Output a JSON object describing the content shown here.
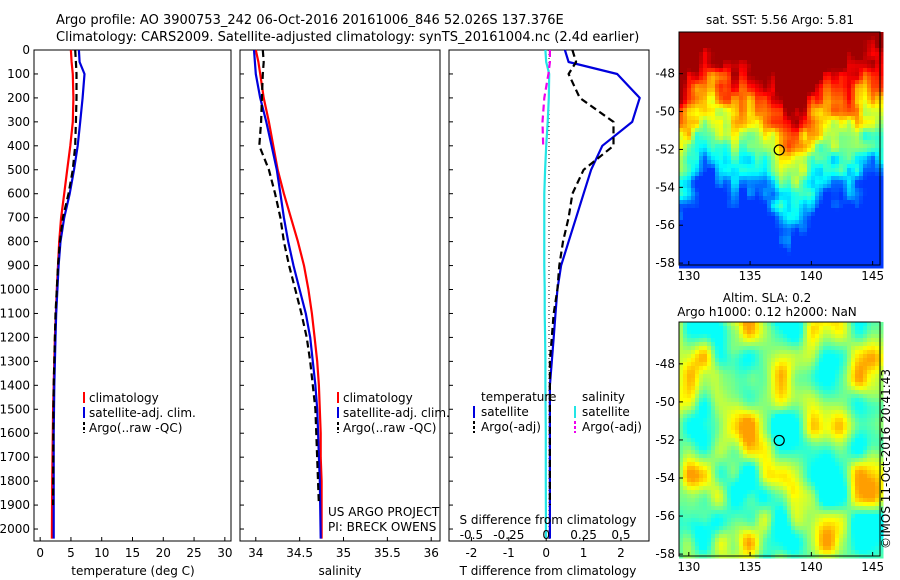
{
  "header": {
    "line1": "Argo profile: AO 3900753_242 06-Oct-2016 20161006_846 52.026S 137.376E",
    "line2": "Climatology: CARS2009. Satellite-adjusted climatology: synTS_20161004.nc (2.4d earlier)"
  },
  "credit": {
    "line1": "US ARGO PROJECT",
    "line2": "PI: BRECK OWENS"
  },
  "watermark": "©IMOS 11-Oct-2016 20:41:43",
  "colors": {
    "climatology": "#ff0000",
    "satellite": "#0000dd",
    "argo": "#000000",
    "salinity_sat": "#22e5e5",
    "salinity_argo": "#ee00ee"
  },
  "chart_data": [
    {
      "type": "line",
      "title": "",
      "xlabel": "temperature (deg C)",
      "ylabel": "",
      "xlim": [
        -1,
        31
      ],
      "ylim": [
        2050,
        0
      ],
      "xticks": [
        "0",
        "5",
        "10",
        "15",
        "20",
        "25",
        "30"
      ],
      "yticks": [
        "0",
        "100",
        "200",
        "300",
        "400",
        "500",
        "600",
        "700",
        "800",
        "900",
        "1000",
        "1100",
        "1200",
        "1300",
        "1400",
        "1500",
        "1600",
        "1700",
        "1800",
        "1900",
        "2000"
      ],
      "legend": [
        "climatology",
        "satellite-adj. clim.",
        "Argo(..raw -QC)"
      ],
      "series": [
        {
          "name": "climatology",
          "color": "#ff0000",
          "x": [
            5.0,
            5.1,
            5.3,
            5.4,
            5.3,
            4.9,
            4.4,
            3.9,
            3.4,
            3.1,
            2.9,
            2.7,
            2.55,
            2.4,
            2.3,
            2.2,
            2.1,
            2.05,
            2.0,
            1.95,
            1.9
          ],
          "y": [
            0,
            50,
            100,
            200,
            300,
            400,
            500,
            600,
            700,
            800,
            900,
            1000,
            1100,
            1200,
            1300,
            1400,
            1500,
            1600,
            1700,
            1800,
            2040
          ]
        },
        {
          "name": "satellite-adj. clim.",
          "color": "#0000dd",
          "x": [
            6.3,
            6.4,
            7.2,
            6.9,
            6.5,
            6.1,
            5.5,
            4.8,
            3.9,
            3.3,
            3.0,
            2.8,
            2.6,
            2.5,
            2.4,
            2.3,
            2.25,
            2.2,
            2.2,
            2.2,
            2.2
          ],
          "y": [
            0,
            50,
            100,
            200,
            300,
            400,
            500,
            600,
            700,
            800,
            900,
            1000,
            1100,
            1200,
            1300,
            1400,
            1500,
            1600,
            1700,
            1800,
            2040
          ]
        },
        {
          "name": "Argo(..raw -QC)",
          "color": "#000000",
          "dashed": true,
          "x": [
            5.7,
            5.8,
            5.9,
            5.9,
            5.8,
            5.7,
            5.3,
            4.6,
            3.7,
            3.2,
            2.9,
            2.7,
            2.5,
            2.4,
            2.3,
            2.2,
            2.15,
            2.1
          ],
          "y": [
            0,
            50,
            100,
            200,
            300,
            400,
            500,
            600,
            700,
            800,
            900,
            1000,
            1100,
            1200,
            1300,
            1400,
            1500,
            1900
          ]
        }
      ]
    },
    {
      "type": "line",
      "title": "",
      "xlabel": "salinity",
      "ylabel": "",
      "xlim": [
        33.82,
        36.1
      ],
      "ylim": [
        2050,
        0
      ],
      "xticks": [
        "34",
        "34.5",
        "35",
        "35.5",
        "36"
      ],
      "legend": [
        "climatology",
        "satellite-adj. clim.",
        "Argo(..raw -QC)"
      ],
      "series": [
        {
          "name": "climatology",
          "color": "#ff0000",
          "x": [
            34.0,
            34.03,
            34.05,
            34.09,
            34.15,
            34.2,
            34.25,
            34.32,
            34.4,
            34.48,
            34.55,
            34.6,
            34.64,
            34.67,
            34.7,
            34.72,
            34.73,
            34.74,
            34.74,
            34.75,
            34.75
          ],
          "y": [
            0,
            50,
            100,
            200,
            300,
            400,
            500,
            600,
            700,
            800,
            900,
            1000,
            1100,
            1200,
            1300,
            1400,
            1500,
            1600,
            1700,
            1800,
            2040
          ]
        },
        {
          "name": "satellite-adj. clim.",
          "color": "#0000dd",
          "x": [
            33.98,
            33.99,
            34.0,
            34.05,
            34.12,
            34.18,
            34.24,
            34.28,
            34.32,
            34.37,
            34.43,
            34.5,
            34.57,
            34.62,
            34.65,
            34.68,
            34.7,
            34.71,
            34.72,
            34.73,
            34.74
          ],
          "y": [
            0,
            50,
            100,
            200,
            300,
            400,
            500,
            600,
            700,
            800,
            900,
            1000,
            1100,
            1200,
            1300,
            1400,
            1500,
            1600,
            1700,
            1800,
            2040
          ]
        },
        {
          "name": "Argo(..raw -QC)",
          "color": "#000000",
          "dashed": true,
          "x": [
            34.08,
            34.09,
            34.08,
            34.07,
            34.06,
            34.04,
            34.15,
            34.22,
            34.28,
            34.32,
            34.38,
            34.45,
            34.52,
            34.58,
            34.62,
            34.65,
            34.68,
            34.72
          ],
          "y": [
            0,
            50,
            100,
            200,
            300,
            400,
            500,
            600,
            700,
            800,
            900,
            1000,
            1100,
            1200,
            1300,
            1400,
            1500,
            1900
          ]
        }
      ]
    },
    {
      "type": "line",
      "title": "",
      "xlabel": "T difference from climatology",
      "xlabel_top": "S difference from climatology",
      "ylabel": "",
      "xlim": [
        -2.6,
        2.75
      ],
      "ylim": [
        2050,
        0
      ],
      "xticks": [
        "-2",
        "-1",
        "0",
        "1",
        "2"
      ],
      "xticks_top": [
        "-0.5",
        "-0.25",
        "0",
        "0.25",
        "0.5"
      ],
      "legend_groups": {
        "temperature": [
          "satellite",
          "Argo(-adj)"
        ],
        "salinity": [
          "satellite",
          "Argo(-adj)"
        ]
      },
      "series": [
        {
          "name": "temperature satellite",
          "color": "#0000dd",
          "x": [
            0.5,
            0.6,
            1.9,
            2.5,
            2.3,
            1.5,
            1.2,
            1.0,
            0.8,
            0.6,
            0.4,
            0.3,
            0.25,
            0.2,
            0.15,
            0.1,
            0.1,
            0.1,
            0.1,
            0.1,
            0.1
          ],
          "y": [
            0,
            50,
            100,
            200,
            300,
            400,
            500,
            600,
            700,
            800,
            900,
            1000,
            1100,
            1200,
            1300,
            1400,
            1500,
            1600,
            1700,
            1800,
            2040
          ]
        },
        {
          "name": "temperature Argo(-adj)",
          "color": "#000000",
          "dashed": true,
          "x": [
            0.7,
            0.8,
            0.6,
            0.9,
            1.8,
            1.8,
            1.0,
            0.7,
            0.6,
            0.45,
            0.35,
            0.3,
            0.2,
            0.15,
            0.1,
            0.1,
            0.1,
            0.1
          ],
          "y": [
            0,
            50,
            100,
            200,
            300,
            400,
            500,
            600,
            700,
            800,
            900,
            1000,
            1100,
            1200,
            1300,
            1400,
            1500,
            1900
          ]
        },
        {
          "name": "salinity satellite",
          "color": "#22e5e5",
          "x": [
            -0.02,
            -0.0,
            0.08,
            0.07,
            0.04,
            0.0,
            -0.03,
            -0.05,
            -0.05,
            -0.05,
            -0.05,
            -0.04,
            -0.04,
            -0.03,
            -0.02,
            -0.02,
            -0.015,
            -0.01,
            -0.01,
            -0.01,
            -0.005
          ],
          "y": [
            0,
            50,
            100,
            200,
            300,
            400,
            500,
            600,
            700,
            800,
            900,
            1000,
            1100,
            1200,
            1300,
            1400,
            1500,
            1600,
            1700,
            1800,
            2040
          ]
        },
        {
          "name": "salinity Argo(-adj)",
          "color": "#ee00ee",
          "dashed": true,
          "x": [
            0.1,
            0.1,
            0.06,
            -0.05,
            -0.1,
            -0.08
          ],
          "y": [
            0,
            50,
            100,
            200,
            300,
            400
          ]
        }
      ]
    },
    {
      "type": "heatmap",
      "title": "sat. SST: 5.56 Argo: 5.81",
      "xlim": [
        129.2,
        145.6
      ],
      "ylim": [
        -58.1,
        -45.8
      ],
      "xticks": [
        "130",
        "135",
        "140",
        "145"
      ],
      "yticks": [
        "-48",
        "-50",
        "-52",
        "-54",
        "-56",
        "-58"
      ],
      "marker": {
        "lon": 137.376,
        "lat": -52.026
      }
    },
    {
      "type": "heatmap",
      "title": "Altim. SLA: 0.2",
      "subtitle": "Argo h1000: 0.12 h2000: NaN",
      "xlim": [
        129.2,
        145.6
      ],
      "ylim": [
        -58.1,
        -45.8
      ],
      "xticks": [
        "130",
        "135",
        "140",
        "145"
      ],
      "yticks": [
        "-48",
        "-50",
        "-52",
        "-54",
        "-56",
        "-58"
      ],
      "marker": {
        "lon": 137.376,
        "lat": -52.026
      }
    }
  ]
}
